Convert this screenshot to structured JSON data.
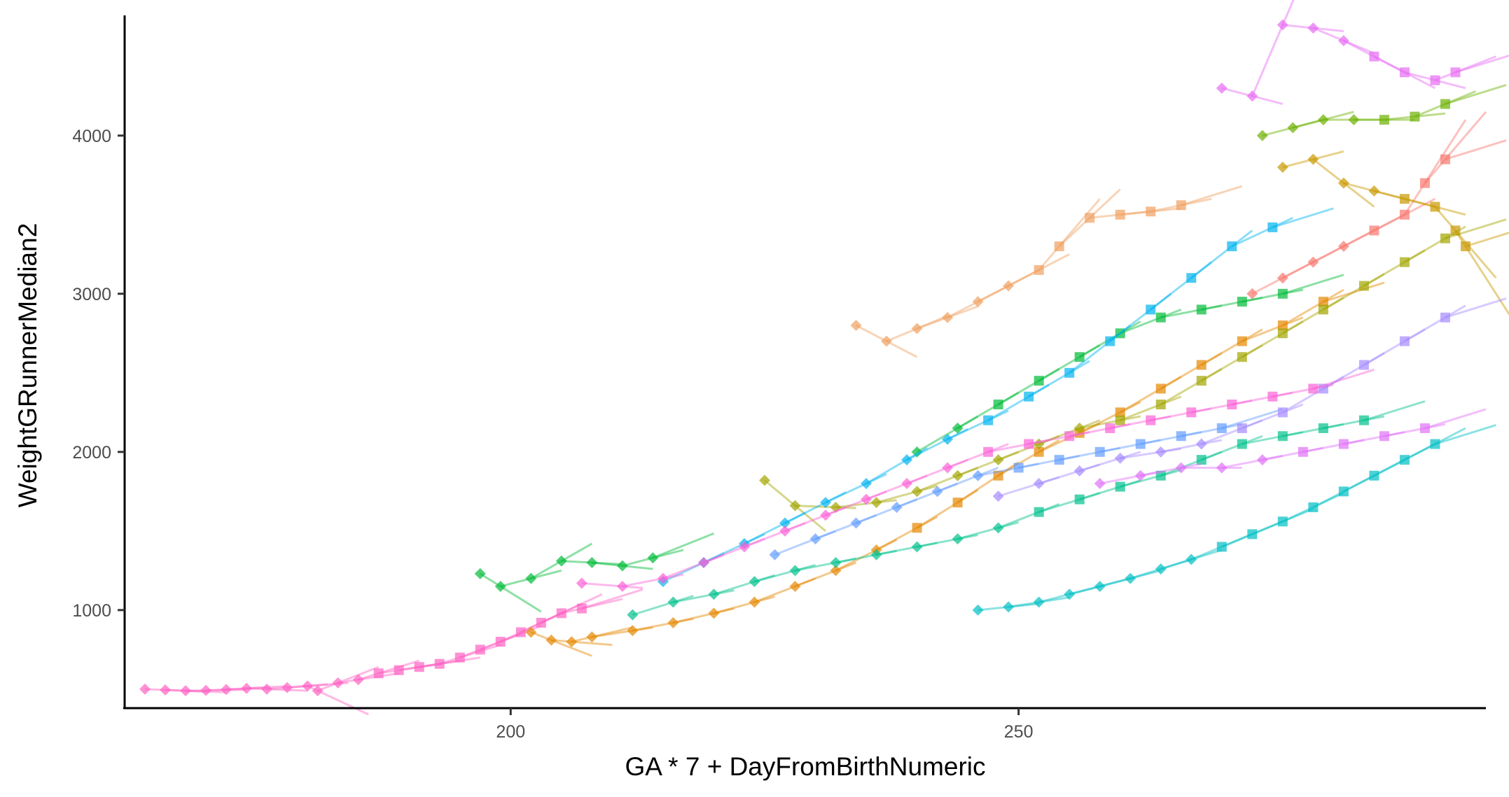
{
  "chart_data": {
    "type": "scatter",
    "title": "",
    "xlabel": "GA * 7 + DayFromBirthNumeric",
    "ylabel": "WeightGRunnerMedian2",
    "xlim": [
      162,
      296
    ],
    "ylim": [
      380,
      4760
    ],
    "x_ticks": [
      {
        "value": 200,
        "label": "200"
      },
      {
        "value": 250,
        "label": "250"
      }
    ],
    "y_ticks": [
      {
        "value": 1000,
        "label": "1000"
      },
      {
        "value": 2000,
        "label": "2000"
      },
      {
        "value": 3000,
        "label": "3000"
      },
      {
        "value": 4000,
        "label": "4000"
      }
    ],
    "grid": false,
    "legend": "none",
    "marker_note": "diamonds mark earlier measurements, squares later ones; short translucent line segments show fitted trajectories",
    "series": [
      {
        "color": "#FF61C3",
        "points": [
          [
            164,
            500
          ],
          [
            166,
            495
          ],
          [
            168,
            490
          ],
          [
            170,
            492
          ],
          [
            172,
            498
          ],
          [
            174,
            505
          ],
          [
            176,
            500
          ],
          [
            178,
            510
          ],
          [
            180,
            520
          ],
          [
            181,
            490
          ],
          [
            183,
            540
          ],
          [
            185,
            560
          ],
          [
            187,
            600
          ],
          [
            189,
            620
          ],
          [
            191,
            640
          ],
          [
            193,
            660
          ],
          [
            195,
            700
          ],
          [
            197,
            750
          ],
          [
            199,
            800
          ],
          [
            201,
            860
          ],
          [
            203,
            920
          ],
          [
            205,
            980
          ],
          [
            207,
            1010
          ]
        ]
      },
      {
        "color": "#F8766D",
        "points": [
          [
            273,
            3000
          ],
          [
            276,
            3100
          ],
          [
            279,
            3200
          ],
          [
            282,
            3300
          ],
          [
            285,
            3400
          ],
          [
            288,
            3500
          ],
          [
            290,
            3700
          ],
          [
            292,
            3850
          ]
        ]
      },
      {
        "color": "#E58700",
        "points": [
          [
            202,
            860
          ],
          [
            204,
            810
          ],
          [
            206,
            800
          ],
          [
            208,
            830
          ],
          [
            212,
            870
          ],
          [
            216,
            920
          ],
          [
            220,
            980
          ],
          [
            224,
            1050
          ],
          [
            228,
            1150
          ],
          [
            232,
            1250
          ],
          [
            236,
            1380
          ],
          [
            240,
            1520
          ],
          [
            244,
            1680
          ],
          [
            248,
            1850
          ],
          [
            252,
            2000
          ],
          [
            256,
            2120
          ],
          [
            260,
            2250
          ],
          [
            264,
            2400
          ],
          [
            268,
            2550
          ],
          [
            272,
            2700
          ],
          [
            276,
            2800
          ],
          [
            280,
            2950
          ]
        ]
      },
      {
        "color": "#F0A060",
        "points": [
          [
            234,
            2800
          ],
          [
            237,
            2700
          ],
          [
            240,
            2780
          ],
          [
            243,
            2850
          ],
          [
            246,
            2950
          ],
          [
            249,
            3050
          ],
          [
            252,
            3150
          ],
          [
            254,
            3300
          ],
          [
            257,
            3480
          ],
          [
            260,
            3500
          ],
          [
            263,
            3520
          ],
          [
            266,
            3560
          ]
        ]
      },
      {
        "color": "#C99800",
        "points": [
          [
            276,
            3800
          ],
          [
            279,
            3850
          ],
          [
            282,
            3700
          ],
          [
            285,
            3650
          ],
          [
            288,
            3600
          ],
          [
            291,
            3550
          ],
          [
            293,
            3400
          ],
          [
            294,
            3300
          ]
        ]
      },
      {
        "color": "#A3A500",
        "points": [
          [
            225,
            1820
          ],
          [
            228,
            1660
          ],
          [
            232,
            1650
          ],
          [
            236,
            1680
          ],
          [
            240,
            1750
          ],
          [
            244,
            1850
          ],
          [
            248,
            1950
          ],
          [
            252,
            2050
          ],
          [
            256,
            2150
          ],
          [
            260,
            2200
          ],
          [
            264,
            2300
          ],
          [
            268,
            2450
          ],
          [
            272,
            2600
          ],
          [
            276,
            2750
          ],
          [
            280,
            2900
          ],
          [
            284,
            3050
          ],
          [
            288,
            3200
          ],
          [
            292,
            3350
          ]
        ]
      },
      {
        "color": "#6BB100",
        "points": [
          [
            274,
            4000
          ],
          [
            277,
            4050
          ],
          [
            280,
            4100
          ],
          [
            283,
            4100
          ],
          [
            286,
            4100
          ],
          [
            289,
            4120
          ],
          [
            292,
            4200
          ]
        ]
      },
      {
        "color": "#00BA38",
        "points": [
          [
            197,
            1230
          ],
          [
            199,
            1150
          ],
          [
            202,
            1200
          ],
          [
            205,
            1310
          ],
          [
            208,
            1300
          ],
          [
            211,
            1280
          ],
          [
            214,
            1330
          ],
          [
            240,
            2000
          ],
          [
            244,
            2150
          ],
          [
            248,
            2300
          ],
          [
            252,
            2450
          ],
          [
            256,
            2600
          ],
          [
            260,
            2750
          ],
          [
            264,
            2850
          ],
          [
            268,
            2900
          ],
          [
            272,
            2950
          ],
          [
            276,
            3000
          ]
        ]
      },
      {
        "color": "#00C08B",
        "points": [
          [
            212,
            970
          ],
          [
            216,
            1050
          ],
          [
            220,
            1100
          ],
          [
            224,
            1180
          ],
          [
            228,
            1250
          ],
          [
            232,
            1300
          ],
          [
            236,
            1350
          ],
          [
            240,
            1400
          ],
          [
            244,
            1450
          ],
          [
            248,
            1520
          ],
          [
            252,
            1620
          ],
          [
            256,
            1700
          ],
          [
            260,
            1780
          ],
          [
            264,
            1850
          ],
          [
            268,
            1950
          ],
          [
            272,
            2050
          ],
          [
            276,
            2100
          ],
          [
            280,
            2150
          ],
          [
            284,
            2200
          ]
        ]
      },
      {
        "color": "#00BFC4",
        "points": [
          [
            246,
            1000
          ],
          [
            249,
            1020
          ],
          [
            252,
            1050
          ],
          [
            255,
            1100
          ],
          [
            258,
            1150
          ],
          [
            261,
            1200
          ],
          [
            264,
            1260
          ],
          [
            267,
            1320
          ],
          [
            270,
            1400
          ],
          [
            273,
            1480
          ],
          [
            276,
            1560
          ],
          [
            279,
            1650
          ],
          [
            282,
            1750
          ],
          [
            285,
            1850
          ],
          [
            288,
            1950
          ],
          [
            291,
            2050
          ]
        ]
      },
      {
        "color": "#00B4EF",
        "points": [
          [
            215,
            1180
          ],
          [
            219,
            1300
          ],
          [
            223,
            1420
          ],
          [
            227,
            1550
          ],
          [
            231,
            1680
          ],
          [
            235,
            1800
          ],
          [
            239,
            1950
          ],
          [
            243,
            2080
          ],
          [
            247,
            2200
          ],
          [
            251,
            2350
          ],
          [
            255,
            2500
          ],
          [
            259,
            2700
          ],
          [
            263,
            2900
          ],
          [
            267,
            3100
          ],
          [
            271,
            3300
          ],
          [
            275,
            3420
          ]
        ]
      },
      {
        "color": "#619CFF",
        "points": [
          [
            226,
            1350
          ],
          [
            230,
            1450
          ],
          [
            234,
            1550
          ],
          [
            238,
            1650
          ],
          [
            242,
            1750
          ],
          [
            246,
            1850
          ],
          [
            250,
            1900
          ],
          [
            254,
            1950
          ],
          [
            258,
            2000
          ],
          [
            262,
            2050
          ],
          [
            266,
            2100
          ],
          [
            270,
            2150
          ]
        ]
      },
      {
        "color": "#A58AFF",
        "points": [
          [
            248,
            1720
          ],
          [
            252,
            1800
          ],
          [
            256,
            1880
          ],
          [
            260,
            1960
          ],
          [
            264,
            2000
          ],
          [
            268,
            2050
          ],
          [
            272,
            2150
          ],
          [
            276,
            2250
          ],
          [
            280,
            2400
          ],
          [
            284,
            2550
          ],
          [
            288,
            2700
          ],
          [
            292,
            2850
          ]
        ]
      },
      {
        "color": "#DF70F8",
        "points": [
          [
            258,
            1800
          ],
          [
            262,
            1850
          ],
          [
            266,
            1900
          ],
          [
            270,
            1900
          ],
          [
            274,
            1950
          ],
          [
            278,
            2000
          ],
          [
            282,
            2050
          ],
          [
            286,
            2100
          ],
          [
            290,
            2150
          ]
        ]
      },
      {
        "color": "#FB61D7",
        "points": [
          [
            207,
            1170
          ],
          [
            211,
            1150
          ],
          [
            215,
            1200
          ],
          [
            219,
            1300
          ],
          [
            223,
            1400
          ],
          [
            227,
            1500
          ],
          [
            231,
            1600
          ],
          [
            235,
            1700
          ],
          [
            239,
            1800
          ],
          [
            243,
            1900
          ],
          [
            247,
            2000
          ],
          [
            251,
            2050
          ],
          [
            255,
            2100
          ],
          [
            259,
            2150
          ],
          [
            263,
            2200
          ],
          [
            267,
            2250
          ],
          [
            271,
            2300
          ],
          [
            275,
            2350
          ],
          [
            279,
            2400
          ]
        ]
      },
      {
        "color": "#E76BF3",
        "points": [
          [
            270,
            4300
          ],
          [
            273,
            4250
          ],
          [
            276,
            4700
          ],
          [
            279,
            4680
          ],
          [
            282,
            4600
          ],
          [
            285,
            4500
          ],
          [
            288,
            4400
          ],
          [
            291,
            4350
          ],
          [
            293,
            4400
          ]
        ]
      }
    ]
  }
}
